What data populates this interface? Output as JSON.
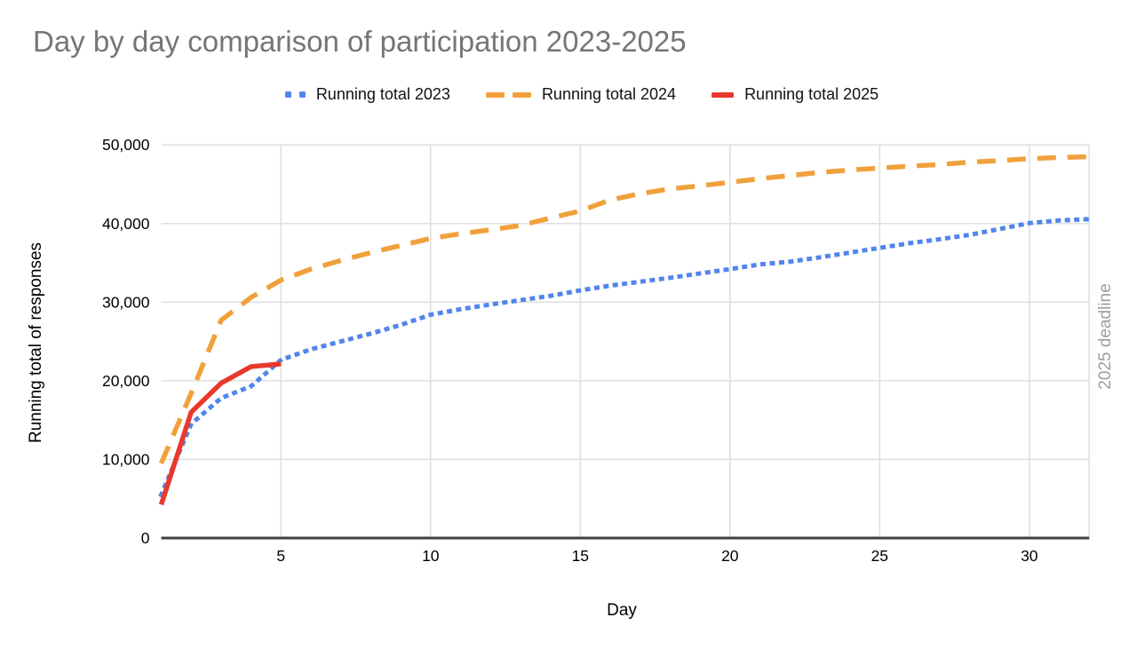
{
  "title": "Day by day comparison of participation 2023-2025",
  "legend": {
    "items": [
      {
        "label": "Running total 2023",
        "color": "#5285EC",
        "style": "dotted"
      },
      {
        "label": "Running total 2024",
        "color": "#F0A13C",
        "style": "dashed"
      },
      {
        "label": "Running total 2025",
        "color": "#E8392C",
        "style": "solid"
      }
    ]
  },
  "axes": {
    "y_title": "Running total of responses",
    "x_title": "Day",
    "right_label": "2025 deadline"
  },
  "colors": {
    "series_2023": "#5285EC",
    "series_2024": "#F0A13C",
    "series_2025": "#E8392C",
    "gridline": "#e0e0e0",
    "axis_line": "#424242",
    "title_text": "#757575",
    "annotation_text": "#9e9e9e",
    "tick_text": "#000000"
  },
  "chart_data": {
    "type": "line",
    "title": "Day by day comparison of participation 2023-2025",
    "xlabel": "Day",
    "ylabel": "Running total of responses",
    "xlim": [
      1,
      32
    ],
    "ylim": [
      0,
      50000
    ],
    "grid": true,
    "legend_position": "top",
    "annotation": "2025 deadline",
    "x_ticks": [
      5,
      10,
      15,
      20,
      25,
      30
    ],
    "y_ticks": [
      0,
      10000,
      20000,
      30000,
      40000,
      50000
    ],
    "y_tick_labels": [
      "0",
      "10,000",
      "20,000",
      "30,000",
      "40,000",
      "50,000"
    ],
    "x": [
      1,
      2,
      3,
      4,
      5,
      6,
      7,
      8,
      9,
      10,
      11,
      12,
      13,
      14,
      15,
      16,
      17,
      18,
      19,
      20,
      21,
      22,
      23,
      24,
      25,
      26,
      27,
      28,
      29,
      30,
      31,
      32
    ],
    "series": [
      {
        "name": "Running total 2023",
        "color": "#5285EC",
        "dash": "dotted",
        "values": [
          5500,
          14500,
          17800,
          19300,
          22650,
          24000,
          25000,
          26000,
          27100,
          28400,
          29100,
          29700,
          30250,
          30800,
          31500,
          32100,
          32600,
          33100,
          33650,
          34200,
          34800,
          35150,
          35700,
          36300,
          36900,
          37500,
          38000,
          38550,
          39300,
          40050,
          40400,
          40550
        ]
      },
      {
        "name": "Running total 2024",
        "color": "#F0A13C",
        "dash": "dashed",
        "values": [
          9500,
          18400,
          27700,
          30600,
          32800,
          34200,
          35300,
          36300,
          37200,
          38100,
          38700,
          39200,
          39750,
          40700,
          41600,
          43000,
          43800,
          44400,
          44800,
          45250,
          45700,
          46100,
          46500,
          46800,
          47050,
          47300,
          47500,
          47800,
          48000,
          48250,
          48400,
          48500
        ]
      },
      {
        "name": "Running total 2025",
        "color": "#E8392C",
        "dash": "solid",
        "values": [
          4250,
          16000,
          19700,
          21800,
          22150
        ]
      }
    ]
  }
}
